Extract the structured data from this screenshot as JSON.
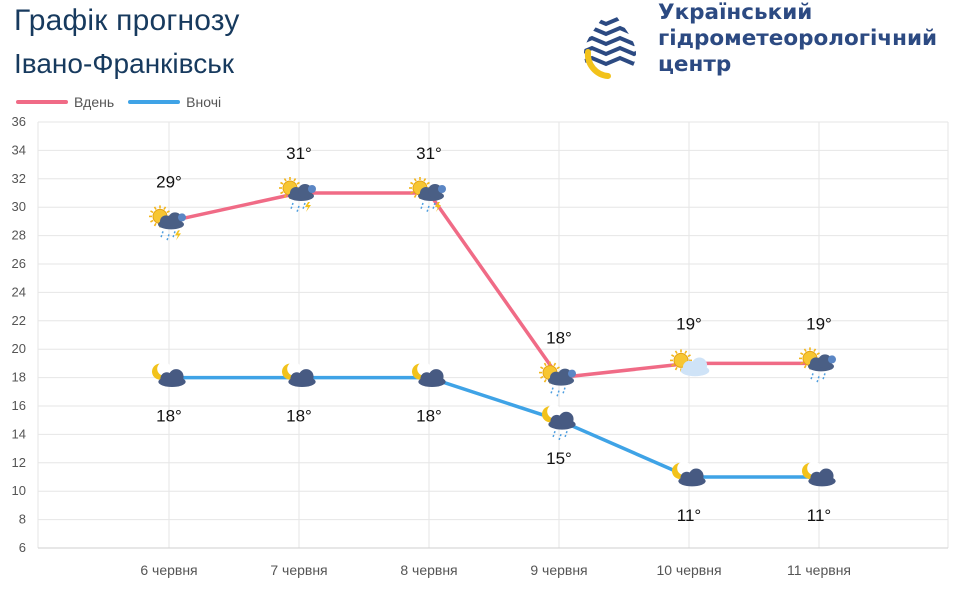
{
  "header": {
    "title": "Графік прогнозу",
    "subtitle": "Івано-Франківськ"
  },
  "org": {
    "line1": "Український",
    "line2": "гідрометеорологічний",
    "line3": "центр",
    "logo_icon": "water-drop-logo-icon"
  },
  "colors": {
    "day": "#f06b86",
    "night": "#3fa3e6",
    "grid": "#e6e6e6",
    "brand": "#2c4a82",
    "logo_yellow": "#f2c21b"
  },
  "legend": [
    {
      "label": "Вдень",
      "color": "#f06b86"
    },
    {
      "label": "Вночі",
      "color": "#3fa3e6"
    }
  ],
  "chart_data": {
    "type": "line",
    "title": "Графік прогнозу",
    "ylim": [
      6,
      36
    ],
    "yticks": [
      6,
      8,
      10,
      12,
      14,
      16,
      18,
      20,
      22,
      24,
      26,
      28,
      30,
      32,
      34,
      36
    ],
    "grid": true,
    "legend_position": "top-left",
    "categories": [
      "6 червня",
      "7 червня",
      "8 червня",
      "9 червня",
      "10 червня",
      "11 червня"
    ],
    "series": [
      {
        "name": "Вдень",
        "values": [
          29,
          31,
          31,
          18,
          19,
          19
        ],
        "labels": [
          "29°",
          "31°",
          "31°",
          "18°",
          "19°",
          "19°"
        ],
        "icons": [
          "sun-cloud-rain-thunder-icon",
          "sun-cloud-rain-thunder-icon",
          "sun-cloud-rain-thunder-icon",
          "sun-cloud-rain-icon",
          "sun-cloud-icon",
          "sun-cloud-rain-icon"
        ]
      },
      {
        "name": "Вночі",
        "values": [
          18,
          18,
          18,
          15,
          11,
          11
        ],
        "labels": [
          "18°",
          "18°",
          "18°",
          "15°",
          "11°",
          "11°"
        ],
        "icons": [
          "moon-cloud-icon",
          "moon-cloud-icon",
          "moon-cloud-icon",
          "moon-cloud-rain-icon",
          "moon-cloud-icon",
          "moon-cloud-icon"
        ]
      }
    ]
  }
}
